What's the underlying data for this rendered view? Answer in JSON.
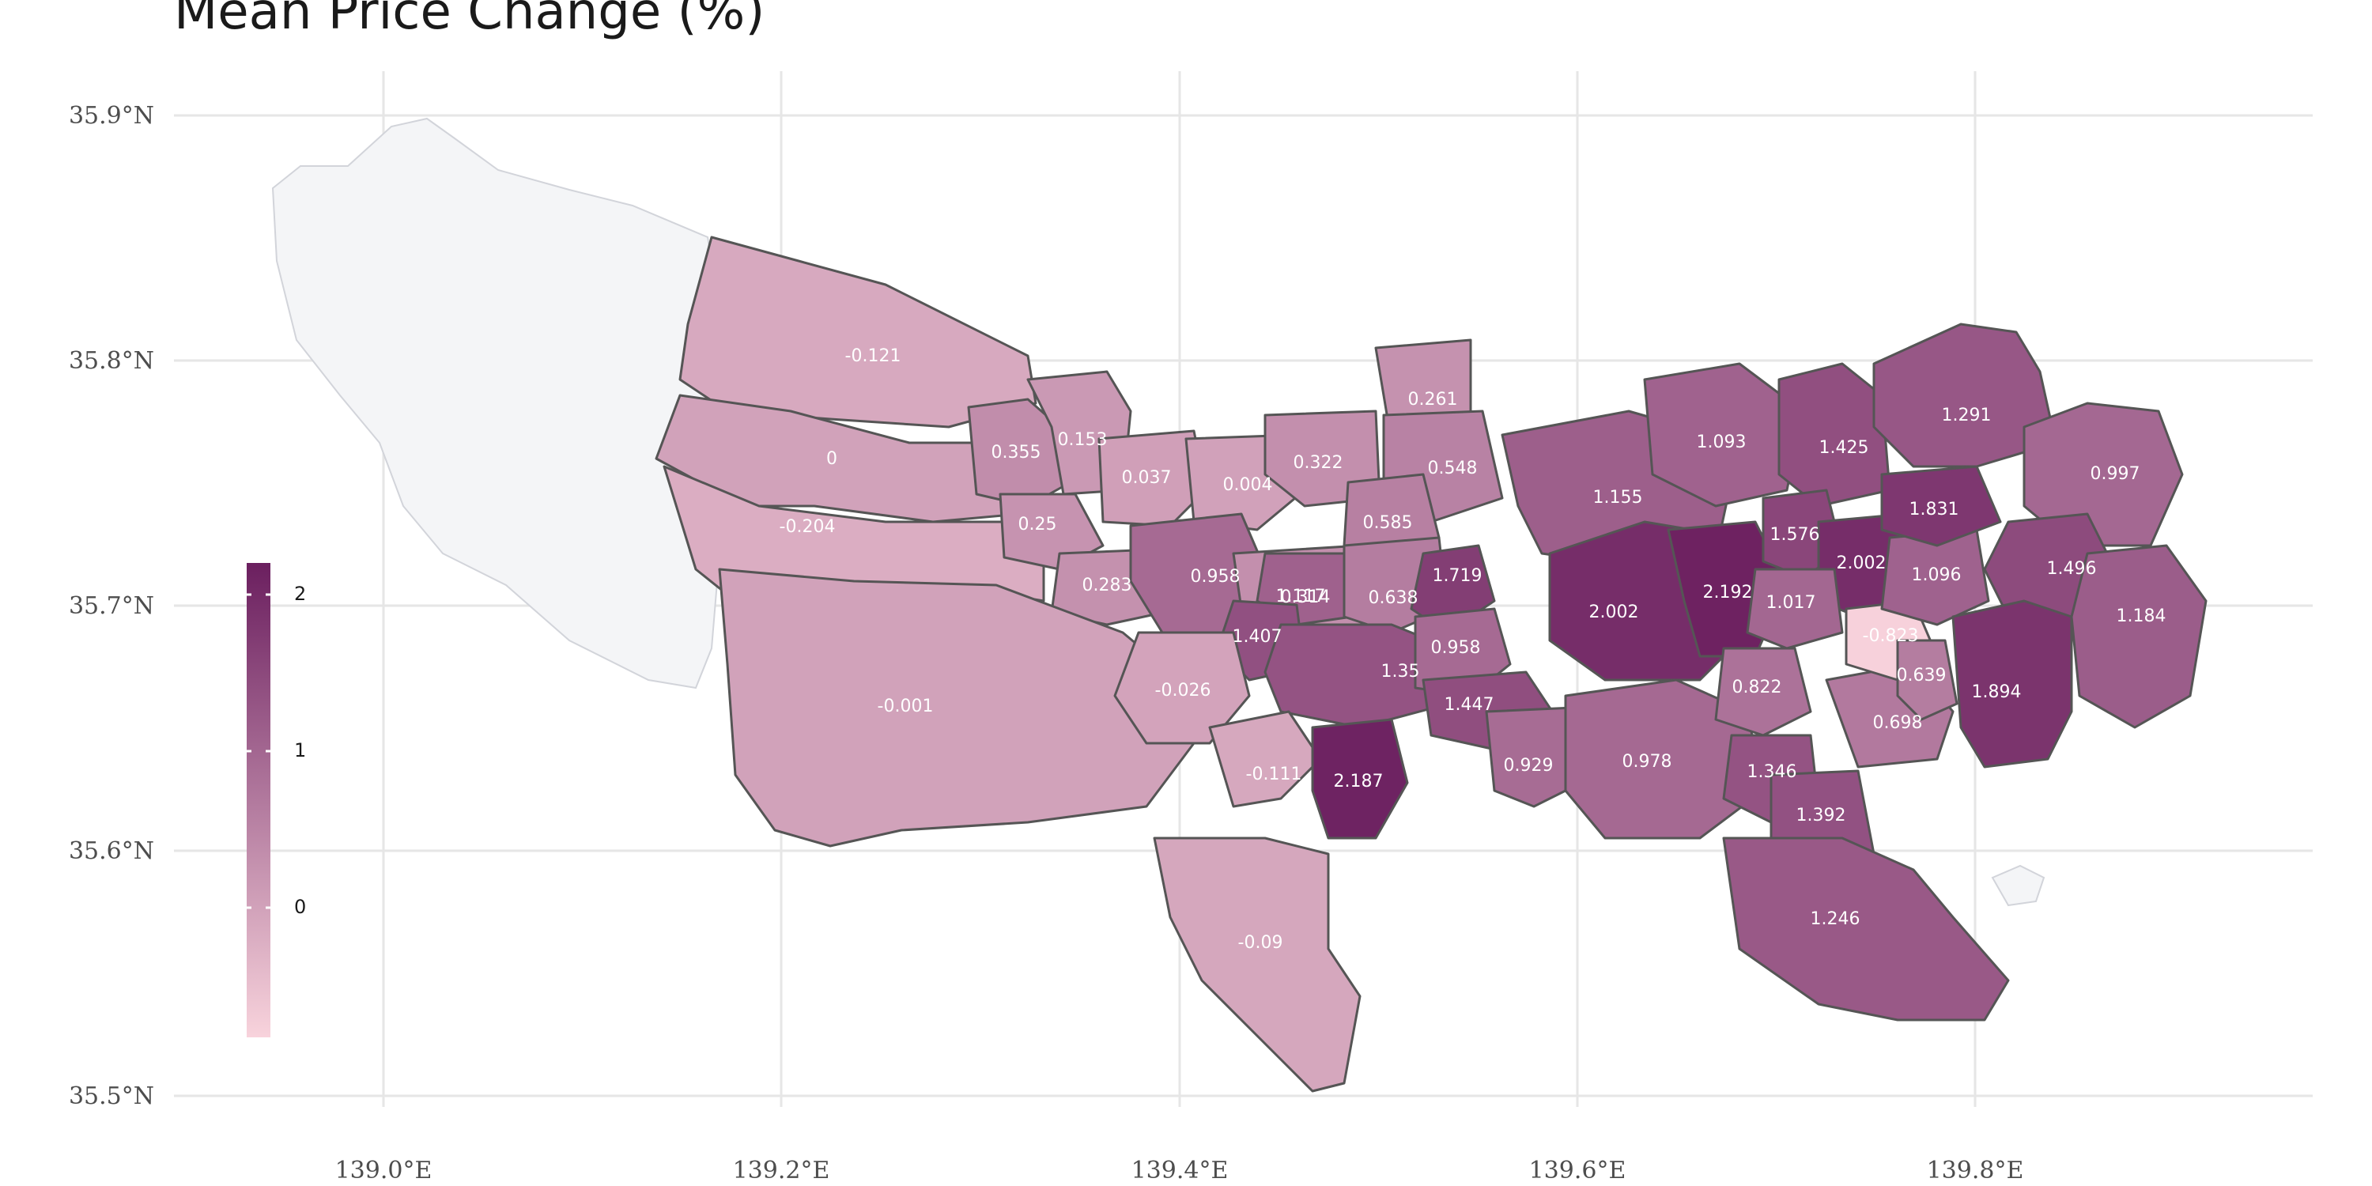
{
  "title": "Mean Price Change (%)",
  "axes": {
    "x_ticks": [
      "139.0°E",
      "139.2°E",
      "139.4°E",
      "139.6°E",
      "139.8°E"
    ],
    "y_ticks": [
      "35.9°N",
      "35.8°N",
      "35.7°N",
      "35.6°N",
      "35.5°N"
    ]
  },
  "legend": {
    "ticks": [
      "2",
      "1",
      "0"
    ],
    "color_low": "#f8d3dc",
    "color_high": "#6b1f5f"
  },
  "colors": {
    "no_data": "#f4f5f7",
    "border": "#555555",
    "grid": "#e6e6e6"
  },
  "regions": [
    {
      "label": "-0.121",
      "value": -0.121
    },
    {
      "label": "0",
      "value": 0
    },
    {
      "label": "-0.204",
      "value": -0.204
    },
    {
      "label": "0.355",
      "value": 0.355
    },
    {
      "label": "0.153",
      "value": 0.153
    },
    {
      "label": "0.037",
      "value": 0.037
    },
    {
      "label": "0.004",
      "value": 0.004
    },
    {
      "label": "0.322",
      "value": 0.322
    },
    {
      "label": "0.261",
      "value": 0.261
    },
    {
      "label": "0.548",
      "value": 0.548
    },
    {
      "label": "0.25",
      "value": 0.25
    },
    {
      "label": "0.283",
      "value": 0.283
    },
    {
      "label": "0.958",
      "value": 0.958
    },
    {
      "label": "0.314",
      "value": 0.314
    },
    {
      "label": "0.585",
      "value": 0.585
    },
    {
      "label": "1.117",
      "value": 1.117
    },
    {
      "label": "0.638",
      "value": 0.638
    },
    {
      "label": "1.407",
      "value": 1.407
    },
    {
      "label": "1.719",
      "value": 1.719
    },
    {
      "label": "1.35",
      "value": 1.35
    },
    {
      "label": "0.958",
      "value": 0.958
    },
    {
      "label": "1.447",
      "value": 1.447
    },
    {
      "label": "-0.001",
      "value": -0.001
    },
    {
      "label": "-0.026",
      "value": -0.026
    },
    {
      "label": "-0.111",
      "value": -0.111
    },
    {
      "label": "2.187",
      "value": 2.187
    },
    {
      "label": "-0.09",
      "value": -0.09
    },
    {
      "label": "0.929",
      "value": 0.929
    },
    {
      "label": "1.155",
      "value": 1.155
    },
    {
      "label": "2.002",
      "value": 2.002
    },
    {
      "label": "2.192",
      "value": 2.192
    },
    {
      "label": "1.093",
      "value": 1.093
    },
    {
      "label": "1.425",
      "value": 1.425
    },
    {
      "label": "1.576",
      "value": 1.576
    },
    {
      "label": "2.002",
      "value": 2.002
    },
    {
      "label": "1.017",
      "value": 1.017
    },
    {
      "label": "0.978",
      "value": 0.978
    },
    {
      "label": "0.822",
      "value": 0.822
    },
    {
      "label": "1.346",
      "value": 1.346
    },
    {
      "label": "1.392",
      "value": 1.392
    },
    {
      "label": "1.246",
      "value": 1.246
    },
    {
      "label": "0.698",
      "value": 0.698
    },
    {
      "label": "-0.823",
      "value": -0.823
    },
    {
      "label": "0.639",
      "value": 0.639
    },
    {
      "label": "1.096",
      "value": 1.096
    },
    {
      "label": "1.291",
      "value": 1.291
    },
    {
      "label": "1.831",
      "value": 1.831
    },
    {
      "label": "0.997",
      "value": 0.997
    },
    {
      "label": "1.496",
      "value": 1.496
    },
    {
      "label": "1.184",
      "value": 1.184
    },
    {
      "label": "1.894",
      "value": 1.894
    }
  ]
}
